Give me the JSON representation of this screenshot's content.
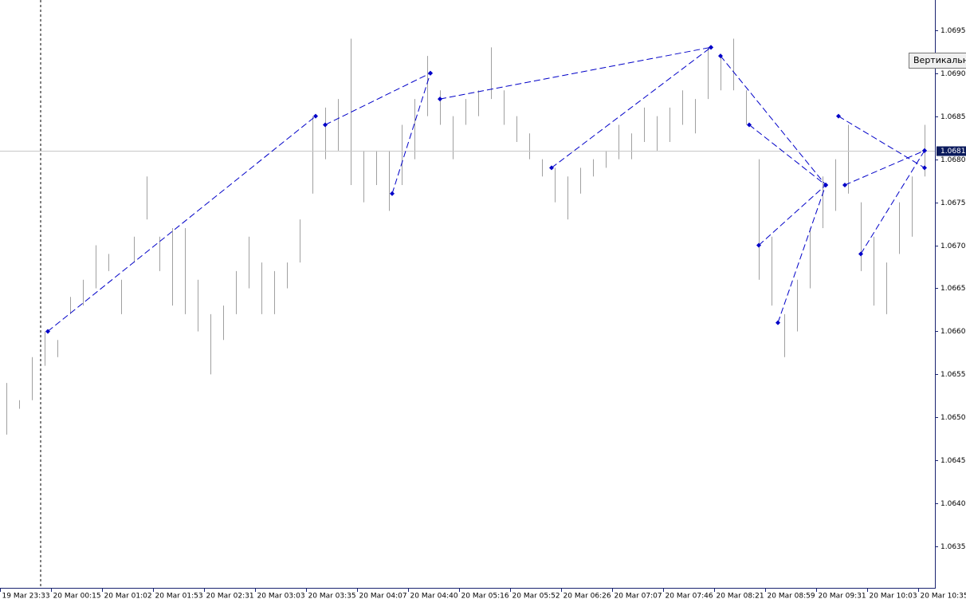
{
  "chart_data": {
    "type": "ohlc",
    "color": "#a0a0a0",
    "x": [
      2,
      6,
      10,
      14,
      18,
      22,
      26,
      30,
      34,
      38,
      42,
      46,
      50,
      54,
      58,
      62,
      66,
      70,
      74,
      78,
      82,
      86,
      90,
      94,
      98,
      102,
      106,
      110,
      114,
      118,
      122,
      126,
      130,
      134,
      138,
      142,
      146,
      150,
      154,
      158,
      162,
      166,
      170,
      174,
      178,
      182,
      186,
      190,
      194,
      198,
      202,
      206,
      210,
      214,
      218,
      222,
      226,
      230,
      234,
      238,
      242,
      246,
      250,
      254,
      258,
      262,
      266,
      270,
      274,
      278,
      282,
      286,
      290
    ],
    "high": [
      1.0654,
      1.0652,
      1.0657,
      1.066,
      1.0659,
      1.0664,
      1.0666,
      1.067,
      1.0669,
      1.0666,
      1.0671,
      1.0678,
      1.0671,
      1.0672,
      1.0672,
      1.0666,
      1.0662,
      1.0663,
      1.0667,
      1.0671,
      1.0668,
      1.0667,
      1.0668,
      1.0673,
      1.0685,
      1.0686,
      1.0687,
      1.0694,
      1.0681,
      1.0681,
      1.0681,
      1.0684,
      1.0687,
      1.0692,
      1.0688,
      1.0685,
      1.0687,
      1.0688,
      1.0693,
      1.0688,
      1.0685,
      1.0683,
      1.068,
      1.0679,
      1.0678,
      1.0679,
      1.068,
      1.0681,
      1.0684,
      1.0683,
      1.0686,
      1.0685,
      1.0686,
      1.0688,
      1.0687,
      1.0693,
      1.0692,
      1.0694,
      1.0688,
      1.068,
      1.0671,
      1.0662,
      1.0666,
      1.0672,
      1.0678,
      1.068,
      1.0684,
      1.0675,
      1.0671,
      1.0668,
      1.0675,
      1.0678,
      1.0684
    ],
    "low": [
      1.0648,
      1.0651,
      1.0652,
      1.0656,
      1.0657,
      1.0662,
      1.0663,
      1.0665,
      1.0667,
      1.0662,
      1.0668,
      1.0673,
      1.0667,
      1.0663,
      1.0662,
      1.066,
      1.0655,
      1.0659,
      1.0662,
      1.0665,
      1.0662,
      1.0662,
      1.0665,
      1.0668,
      1.0676,
      1.068,
      1.0681,
      1.0677,
      1.0675,
      1.0677,
      1.0674,
      1.0677,
      1.068,
      1.0685,
      1.0684,
      1.068,
      1.0684,
      1.0685,
      1.0687,
      1.0684,
      1.0682,
      1.068,
      1.0678,
      1.0675,
      1.0673,
      1.0676,
      1.0678,
      1.0679,
      1.068,
      1.068,
      1.0682,
      1.0681,
      1.0682,
      1.0684,
      1.0683,
      1.0687,
      1.0688,
      1.0688,
      1.0684,
      1.0666,
      1.0663,
      1.0657,
      1.066,
      1.0665,
      1.0672,
      1.0674,
      1.0676,
      1.0667,
      1.0663,
      1.0662,
      1.0669,
      1.0671,
      1.0678
    ],
    "segments": [
      {
        "x": [
          15,
          99
        ],
        "y": [
          1.066,
          1.0685
        ]
      },
      {
        "x": [
          102,
          135
        ],
        "y": [
          1.0684,
          1.069
        ]
      },
      {
        "x": [
          123,
          135
        ],
        "y": [
          1.0676,
          1.069
        ]
      },
      {
        "x": [
          138,
          223
        ],
        "y": [
          1.0687,
          1.0693
        ]
      },
      {
        "x": [
          173,
          223
        ],
        "y": [
          1.0679,
          1.0693
        ]
      },
      {
        "x": [
          226,
          259
        ],
        "y": [
          1.0692,
          1.0677
        ]
      },
      {
        "x": [
          235,
          259
        ],
        "y": [
          1.0684,
          1.0677
        ]
      },
      {
        "x": [
          238,
          259
        ],
        "y": [
          1.067,
          1.0677
        ]
      },
      {
        "x": [
          244,
          259
        ],
        "y": [
          1.0661,
          1.0677
        ]
      },
      {
        "x": [
          263,
          290
        ],
        "y": [
          1.0685,
          1.0679
        ]
      },
      {
        "x": [
          265,
          290
        ],
        "y": [
          1.0677,
          1.0681
        ]
      },
      {
        "x": [
          270,
          290
        ],
        "y": [
          1.0669,
          1.0681
        ]
      }
    ],
    "segment_color": "#0000c8",
    "xlim": [
      0,
      293
    ],
    "xticks": [
      {
        "value": 0,
        "label": "19 Mar 23:33"
      },
      {
        "value": 16,
        "label": "20 Mar 00:15"
      },
      {
        "value": 32,
        "label": "20 Mar 01:02"
      },
      {
        "value": 48,
        "label": "20 Mar 01:53"
      },
      {
        "value": 64,
        "label": "20 Mar 02:31"
      },
      {
        "value": 80,
        "label": "20 Mar 03:03"
      },
      {
        "value": 96,
        "label": "20 Mar 03:35"
      },
      {
        "value": 112,
        "label": "20 Mar 04:07"
      },
      {
        "value": 128,
        "label": "20 Mar 04:40"
      },
      {
        "value": 144,
        "label": "20 Mar 05:16"
      },
      {
        "value": 160,
        "label": "20 Mar 05:52"
      },
      {
        "value": 176,
        "label": "20 Mar 06:26"
      },
      {
        "value": 192,
        "label": "20 Mar 07:07"
      },
      {
        "value": 208,
        "label": "20 Mar 07:46"
      },
      {
        "value": 224,
        "label": "20 Mar 08:21"
      },
      {
        "value": 240,
        "label": "20 Mar 08:59"
      },
      {
        "value": 256,
        "label": "20 Mar 09:31"
      },
      {
        "value": 272,
        "label": "20 Mar 10:03"
      },
      {
        "value": 288,
        "label": "20 Mar 10:35"
      }
    ],
    "ylim": [
      1.06302,
      1.06985
    ],
    "yticks": [
      1.0695,
      {
        "value": 1.069,
        "label": "1.0690"
      },
      1.0685,
      {
        "value": 1.068,
        "label": "1.0680"
      },
      1.0675,
      {
        "value": 1.067,
        "label": "1.0670"
      },
      1.0665,
      {
        "value": 1.066,
        "label": "1.0660"
      },
      1.0655,
      {
        "value": 1.065,
        "label": "1.0650"
      },
      1.0645,
      {
        "value": 1.064,
        "label": "1.0640"
      },
      1.0635
    ],
    "price_line": {
      "value": 1.0681,
      "label": "1.0681"
    },
    "tooltip": "Вертикальны"
  }
}
